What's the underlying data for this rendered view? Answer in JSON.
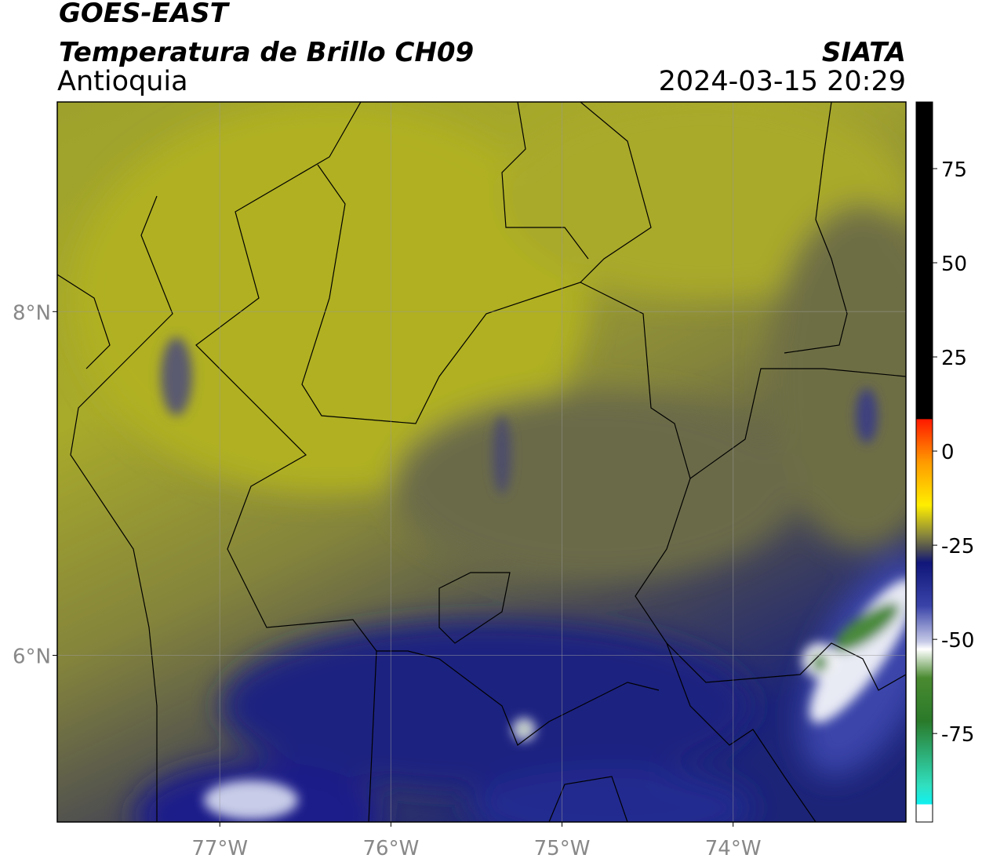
{
  "header": {
    "title": "GOES-EAST",
    "subtitle": "Temperatura de Brillo CH09",
    "region": "Antioquia",
    "source": "SIATA",
    "timestamp": "2024-03-15 20:29"
  },
  "map": {
    "xlim": [
      -77.95,
      -72.99
    ],
    "ylim": [
      5.03,
      9.22
    ],
    "xticks": [
      {
        "value": -77,
        "label": "77°W"
      },
      {
        "value": -76,
        "label": "76°W"
      },
      {
        "value": -75,
        "label": "75°W"
      },
      {
        "value": -74,
        "label": "74°W"
      }
    ],
    "yticks": [
      {
        "value": 6,
        "label": "6°N"
      },
      {
        "value": 8,
        "label": "8°N"
      }
    ],
    "grid": true
  },
  "colorbar": {
    "range": [
      -98.5,
      92.7
    ],
    "ticks": [
      75,
      50,
      25,
      0,
      -25,
      -50,
      -75
    ]
  }
}
